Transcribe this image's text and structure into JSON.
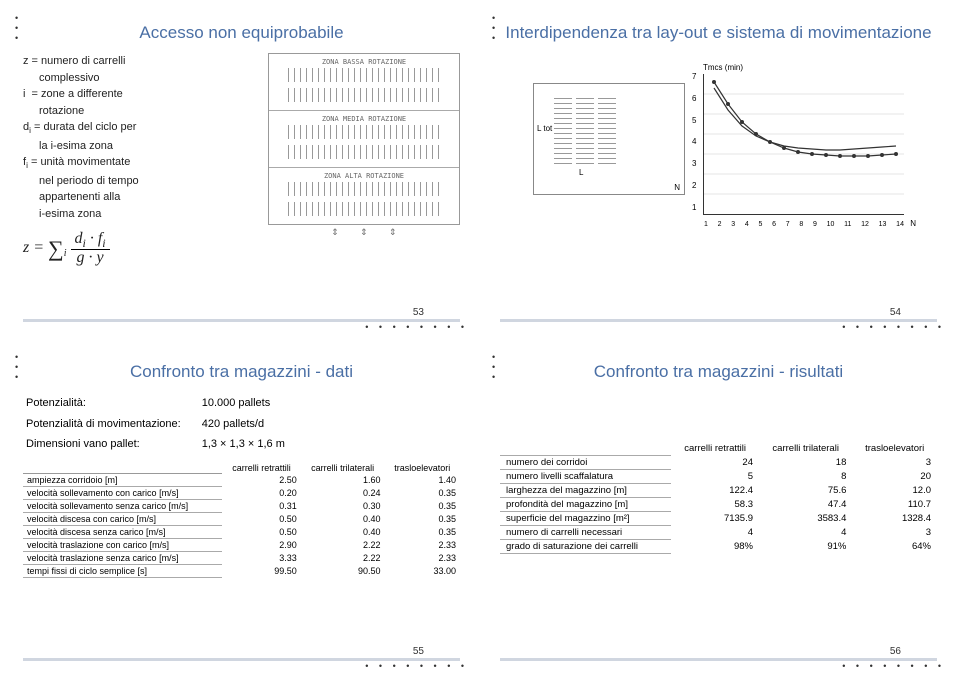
{
  "slide1": {
    "title": "Accesso non equiprobabile",
    "defs": [
      "z = numero di carrelli complessivo",
      "i  = zone a differente rotazione",
      "dᵢ = durata del ciclo per la i-esima zona",
      "fᵢ = unità movimentate nel periodo di tempo appartenenti alla i-esima zona"
    ],
    "formula": "z = Σᵢ (dᵢ · fᵢ) / (g · y)",
    "zones": [
      "ZONA BASSA ROTAZIONE",
      "ZONA MEDIA ROTAZIONE",
      "ZONA ALTA ROTAZIONE"
    ],
    "pagenum": "53",
    "colors": {
      "title": "#4a6fa5",
      "rule": "#d0d6e0"
    }
  },
  "slide2": {
    "title": "Interdipendenza tra lay-out e sistema di movimentazione",
    "layout_labels": {
      "Ltot": "L tot",
      "L": "L",
      "N": "N"
    },
    "chart": {
      "y_label": "Tmcs (min)",
      "y_ticks": [
        1,
        2,
        3,
        4,
        5,
        6,
        7
      ],
      "x_ticks": [
        1,
        2,
        3,
        4,
        5,
        6,
        7,
        8,
        9,
        10,
        11,
        12,
        13,
        14
      ],
      "x_label": "N",
      "series": [
        {
          "color": "#333",
          "marker": "circle",
          "values": [
            6.8,
            5.5,
            4.6,
            4.0,
            3.6,
            3.3,
            3.1,
            3.0,
            2.95,
            2.9,
            2.9,
            2.9,
            2.95,
            3.0
          ]
        },
        {
          "color": "#333",
          "marker": "square",
          "values": [
            6.5,
            5.0,
            4.2,
            3.7,
            3.4,
            3.2,
            3.1,
            3.05,
            3.0,
            3.0,
            3.05,
            3.1,
            3.15,
            3.2
          ]
        }
      ]
    },
    "pagenum": "54"
  },
  "slide3": {
    "title": "Confronto tra magazzini - dati",
    "specs": [
      [
        "Potenzialità:",
        "10.000 pallets"
      ],
      [
        "Potenzialità di movimentazione:",
        "420 pallets/d"
      ],
      [
        "Dimensioni vano pallet:",
        "1,3 × 1,3 × 1,6 m"
      ]
    ],
    "table": {
      "columns": [
        "",
        "carrelli retrattili",
        "carrelli trilaterali",
        "trasloelevatori"
      ],
      "rows": [
        [
          "ampiezza corridoio [m]",
          "2.50",
          "1.60",
          "1.40"
        ],
        [
          "velocità sollevamento con carico [m/s]",
          "0.20",
          "0.24",
          "0.35"
        ],
        [
          "velocità sollevamento senza carico [m/s]",
          "0.31",
          "0.30",
          "0.35"
        ],
        [
          "velocità discesa con carico [m/s]",
          "0.50",
          "0.40",
          "0.35"
        ],
        [
          "velocità discesa senza carico [m/s]",
          "0.50",
          "0.40",
          "0.35"
        ],
        [
          "velocità traslazione con carico [m/s]",
          "2.90",
          "2.22",
          "2.33"
        ],
        [
          "velocità traslazione senza carico [m/s]",
          "3.33",
          "2.22",
          "2.33"
        ],
        [
          "tempi fissi di ciclo semplice [s]",
          "99.50",
          "90.50",
          "33.00"
        ]
      ]
    },
    "pagenum": "55"
  },
  "slide4": {
    "title": "Confronto tra magazzini - risultati",
    "table": {
      "columns": [
        "",
        "carrelli retrattili",
        "carrelli trilaterali",
        "trasloelevatori"
      ],
      "rows": [
        [
          "numero dei corridoi",
          "24",
          "18",
          "3"
        ],
        [
          "numero livelli scaffalatura",
          "5",
          "8",
          "20"
        ],
        [
          "larghezza del magazzino [m]",
          "122.4",
          "75.6",
          "12.0"
        ],
        [
          "profondità del magazzino [m]",
          "58.3",
          "47.4",
          "110.7"
        ],
        [
          "superficie del magazzino [m²]",
          "7135.9",
          "3583.4",
          "1328.4"
        ],
        [
          "numero di carrelli necessari",
          "4",
          "4",
          "3"
        ],
        [
          "grado di saturazione dei carrelli",
          "98%",
          "91%",
          "64%"
        ]
      ]
    },
    "pagenum": "56"
  }
}
